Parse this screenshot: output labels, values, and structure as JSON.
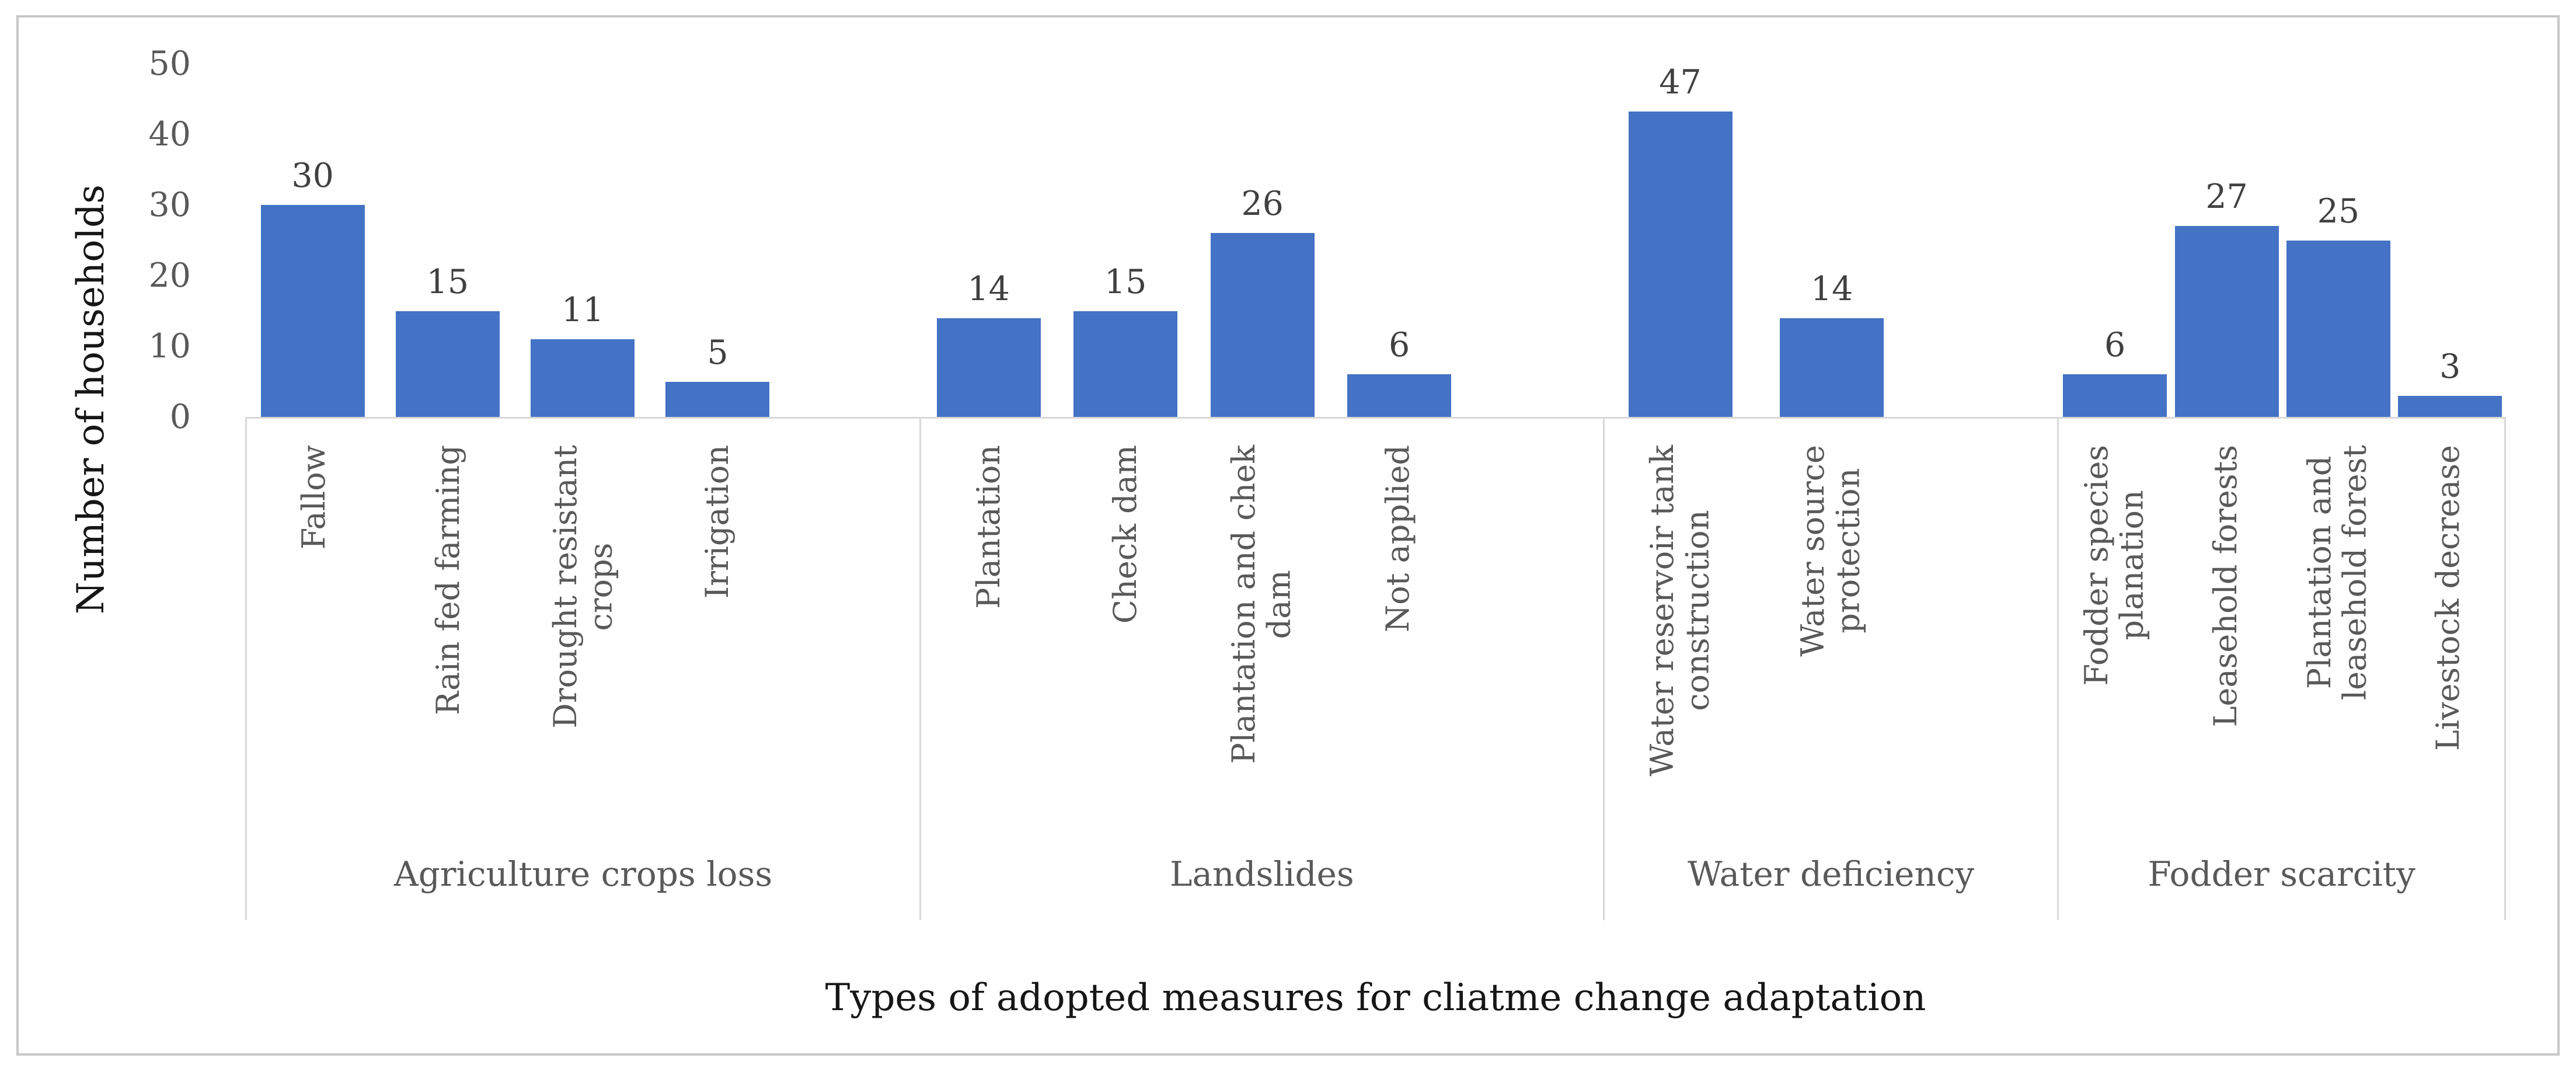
{
  "chart_data": {
    "type": "bar",
    "title": "",
    "xlabel": "Types of adopted measures for cliatme change adaptation",
    "ylabel": "Number of households",
    "ylim": [
      0,
      50
    ],
    "yticks": [
      0,
      10,
      20,
      30,
      40,
      50
    ],
    "grid": false,
    "legend": false,
    "bar_color": "#4472C4",
    "axis_line_color": "#d9d9d9",
    "tick_label_color": "#595959",
    "value_label_color": "#404040",
    "groups": [
      {
        "name": "Agriculture crops loss",
        "trailing_blank": true,
        "flex": 1157,
        "categories": [
          "Fallow",
          "Rain  fed farming",
          "Drought resistant\ncrops",
          "Irrigation"
        ],
        "values": [
          30,
          15,
          11,
          5
        ]
      },
      {
        "name": "Landslides",
        "trailing_blank": true,
        "flex": 1173,
        "categories": [
          "Plantation",
          "Check dam",
          "Plantation and chek\ndam",
          "Not applied"
        ],
        "values": [
          14,
          15,
          26,
          6
        ]
      },
      {
        "name": "Water deficiency",
        "trailing_blank": true,
        "flex": 779,
        "categories": [
          "Water reservoir tank\nconstruction",
          "Water source\nprotection"
        ],
        "values": [
          47,
          14
        ]
      },
      {
        "name": "Fodder scarcity",
        "trailing_blank": false,
        "flex": 766,
        "categories": [
          "Fodder species\nplanation",
          "Leasehold forests",
          "Plantation and\nleasehold forest",
          "Livestock decrease"
        ],
        "values": [
          6,
          27,
          25,
          3
        ]
      }
    ]
  }
}
